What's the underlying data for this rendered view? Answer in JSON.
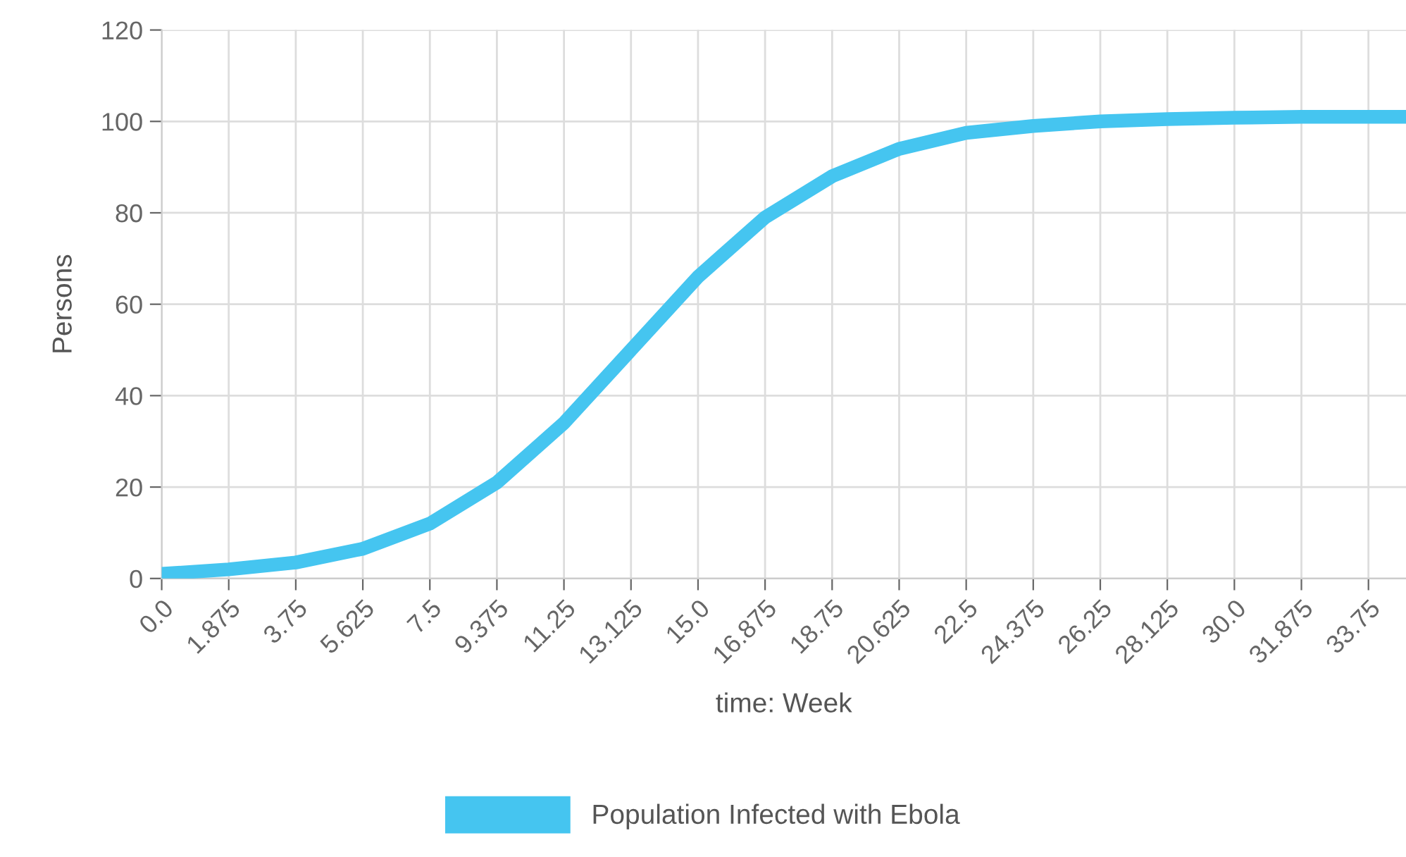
{
  "chart_data": {
    "type": "line",
    "xlabel": "time: Week",
    "ylabel": "Persons",
    "x": [
      0,
      1.875,
      3.75,
      5.625,
      7.5,
      9.375,
      11.25,
      13.125,
      15,
      16.875,
      18.75,
      20.625,
      22.5,
      24.375,
      26.25,
      28.125,
      30,
      31.875,
      33.75,
      34.8
    ],
    "series": [
      {
        "name": "Population Infected with Ebola",
        "color": "#45c5f0",
        "values": [
          1,
          2,
          3.5,
          6.5,
          12,
          21,
          34,
          50,
          66,
          79,
          88,
          94,
          97.5,
          99,
          100,
          100.5,
          100.8,
          101,
          101,
          101
        ]
      }
    ],
    "xlim": [
      0,
      34.8
    ],
    "xticks": [
      {
        "value": 0,
        "label": "0.0"
      },
      1.875,
      3.75,
      5.625,
      7.5,
      9.375,
      11.25,
      13.125,
      {
        "value": 15,
        "label": "15.0"
      },
      16.875,
      18.75,
      20.625,
      22.5,
      24.375,
      26.25,
      28.125,
      {
        "value": 30,
        "label": "30.0"
      },
      31.875,
      33.75
    ],
    "ylim": [
      0,
      120
    ],
    "yticks": [
      0,
      20,
      40,
      60,
      80,
      100,
      120
    ],
    "grid": true,
    "legend": "bottom",
    "marker": "none",
    "line_style": "solid"
  }
}
